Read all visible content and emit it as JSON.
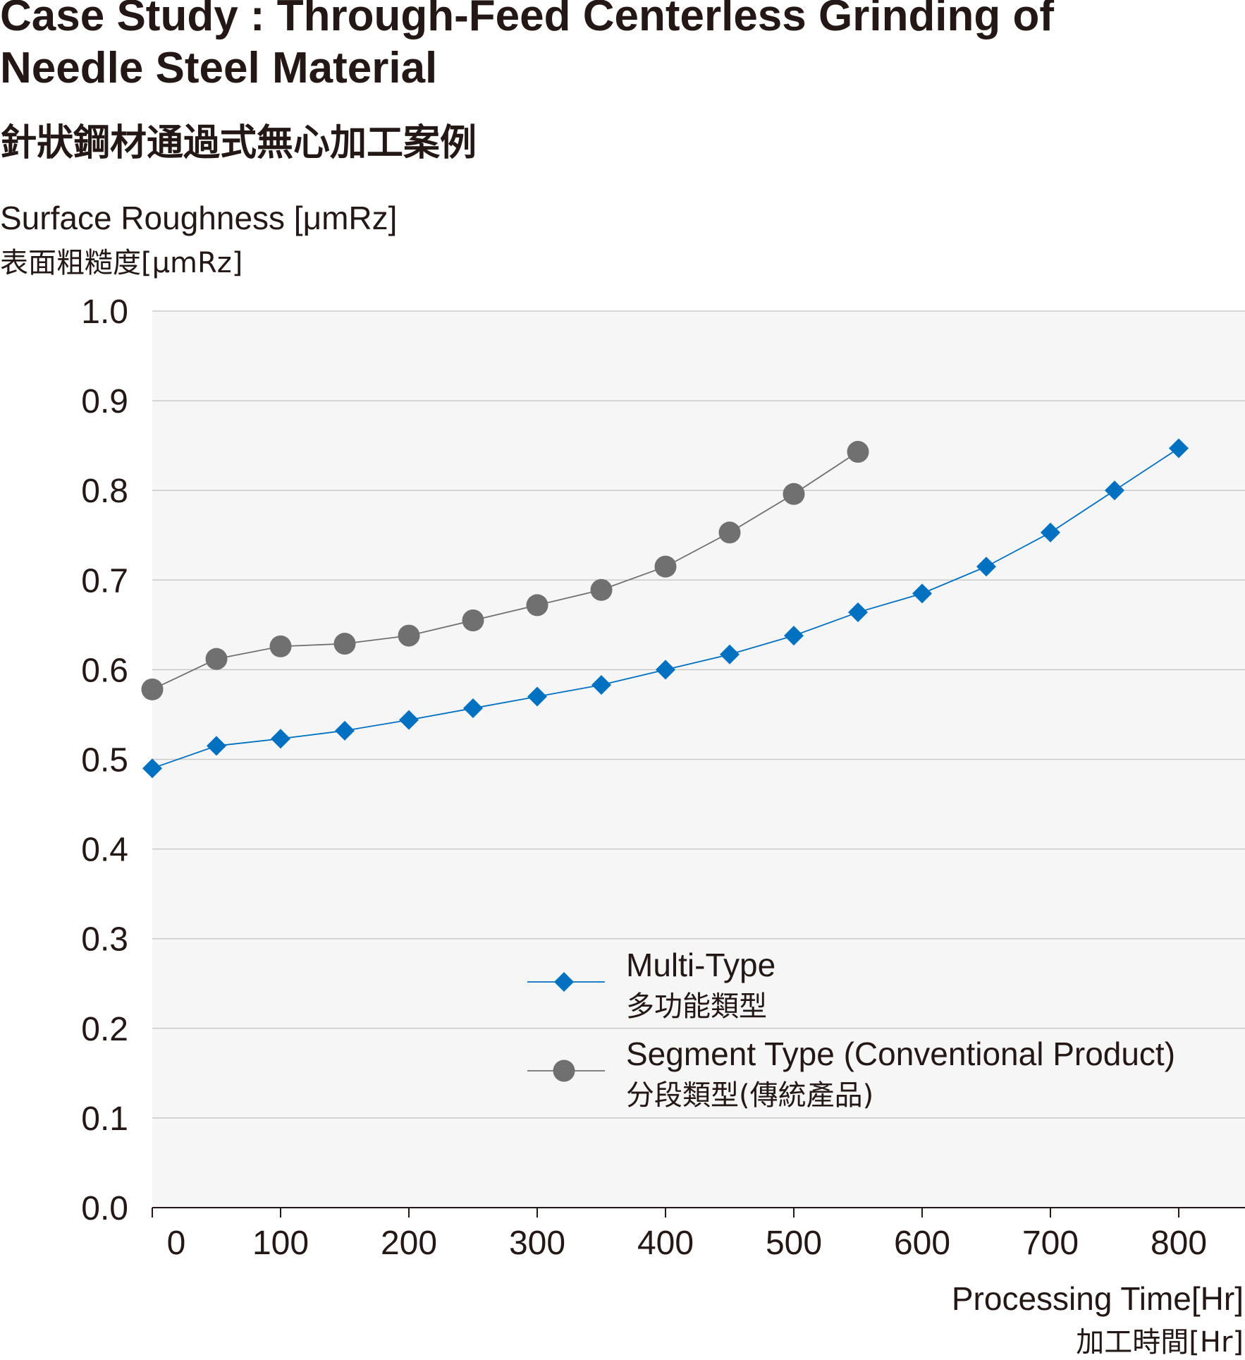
{
  "title": {
    "en_line1": "Case Study : Through-Feed Centerless Grinding of",
    "en_line2": "Needle Steel Material",
    "zh": "針狀鋼材通過式無心加工案例"
  },
  "chart_data": {
    "type": "line",
    "ylabel": "Surface Roughness [μmRz]",
    "ylabel_zh": "表面粗糙度[μmRz]",
    "xlabel": "Processing Time[Hr]",
    "xlabel_zh": "加工時間[Hr]",
    "xlim": [
      0,
      850
    ],
    "ylim": [
      0.0,
      1.0
    ],
    "x_ticks": [
      0,
      100,
      200,
      300,
      400,
      500,
      600,
      700,
      800
    ],
    "x_tick_labels": [
      "0",
      "100",
      "200",
      "300",
      "400",
      "500",
      "600",
      "700",
      "800"
    ],
    "y_ticks": [
      0.0,
      0.1,
      0.2,
      0.3,
      0.4,
      0.5,
      0.6,
      0.7,
      0.8,
      0.9,
      1.0
    ],
    "y_tick_labels": [
      "0.0",
      "0.1",
      "0.2",
      "0.3",
      "0.4",
      "0.5",
      "0.6",
      "0.7",
      "0.8",
      "0.9",
      "1.0"
    ],
    "grid": "horizontal",
    "background": "#f6f6f6",
    "legend_position": "lower-right",
    "series": [
      {
        "name": "Multi-Type",
        "name_zh": "多功能類型",
        "marker": "diamond",
        "color": "#0070c0",
        "x": [
          0,
          50,
          100,
          150,
          200,
          250,
          300,
          350,
          400,
          450,
          500,
          550,
          600,
          650,
          700,
          750,
          800
        ],
        "y": [
          0.49,
          0.515,
          0.523,
          0.532,
          0.544,
          0.557,
          0.57,
          0.583,
          0.6,
          0.617,
          0.638,
          0.664,
          0.685,
          0.715,
          0.753,
          0.8,
          0.847
        ]
      },
      {
        "name": "Segment Type (Conventional Product)",
        "name_zh": "分段類型(傳統產品)",
        "marker": "circle",
        "color": "#707070",
        "x": [
          0,
          50,
          100,
          150,
          200,
          250,
          300,
          350,
          400,
          450,
          500,
          550
        ],
        "y": [
          0.578,
          0.612,
          0.626,
          0.629,
          0.638,
          0.655,
          0.672,
          0.689,
          0.715,
          0.753,
          0.796,
          0.843
        ]
      }
    ]
  }
}
